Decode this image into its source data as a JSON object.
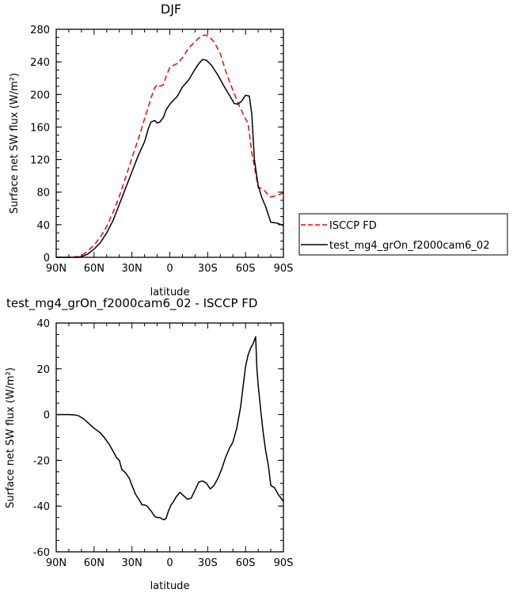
{
  "chart_data": [
    {
      "type": "line",
      "title": "DJF",
      "xlabel": "latitude",
      "ylabel": "Surface net SW flux (W/m²)",
      "xlim": [
        90,
        -90
      ],
      "ylim": [
        0,
        280
      ],
      "x_ticks": [
        90,
        60,
        30,
        0,
        -30,
        -60,
        -90
      ],
      "x_tick_labels": [
        "90N",
        "60N",
        "30N",
        "0",
        "30S",
        "60S",
        "90S"
      ],
      "y_ticks": [
        0,
        40,
        80,
        120,
        160,
        200,
        240,
        280
      ],
      "y_tick_labels": [
        "0",
        "40",
        "80",
        "120",
        "160",
        "200",
        "240",
        "280"
      ],
      "legend_position": "right",
      "series": [
        {
          "name": "ISCCP FD",
          "color": "#ff0000",
          "dash": "dashed",
          "points": [
            [
              90,
              0
            ],
            [
              80,
              0
            ],
            [
              72,
              1
            ],
            [
              68,
              4
            ],
            [
              65,
              8
            ],
            [
              60,
              15
            ],
            [
              55,
              25
            ],
            [
              50,
              38
            ],
            [
              45,
              55
            ],
            [
              40,
              75
            ],
            [
              35,
              98
            ],
            [
              30,
              122
            ],
            [
              25,
              145
            ],
            [
              20,
              170
            ],
            [
              15,
              195
            ],
            [
              12,
              208
            ],
            [
              10,
              212
            ],
            [
              8,
              210
            ],
            [
              5,
              212
            ],
            [
              3,
              222
            ],
            [
              0,
              233
            ],
            [
              -3,
              236
            ],
            [
              -6,
              238
            ],
            [
              -10,
              245
            ],
            [
              -15,
              257
            ],
            [
              -20,
              265
            ],
            [
              -25,
              272
            ],
            [
              -28,
              273
            ],
            [
              -31,
              271
            ],
            [
              -35,
              265
            ],
            [
              -40,
              250
            ],
            [
              -45,
              225
            ],
            [
              -50,
              205
            ],
            [
              -55,
              186
            ],
            [
              -60,
              170
            ],
            [
              -62,
              165
            ],
            [
              -65,
              128
            ],
            [
              -70,
              86
            ],
            [
              -72,
              85
            ],
            [
              -75,
              82
            ],
            [
              -78,
              76
            ],
            [
              -80,
              74
            ],
            [
              -85,
              76
            ],
            [
              -90,
              79
            ]
          ]
        },
        {
          "name": "test_mg4_grOn_f2000cam6_02",
          "color": "#000000",
          "dash": "solid",
          "points": [
            [
              90,
              0
            ],
            [
              80,
              0
            ],
            [
              72,
              0
            ],
            [
              68,
              2
            ],
            [
              65,
              4
            ],
            [
              60,
              10
            ],
            [
              55,
              18
            ],
            [
              50,
              30
            ],
            [
              45,
              45
            ],
            [
              40,
              65
            ],
            [
              35,
              85
            ],
            [
              30,
              105
            ],
            [
              25,
              125
            ],
            [
              20,
              142
            ],
            [
              17,
              158
            ],
            [
              15,
              166
            ],
            [
              12,
              168
            ],
            [
              10,
              165
            ],
            [
              8,
              166
            ],
            [
              5,
              172
            ],
            [
              3,
              181
            ],
            [
              0,
              188
            ],
            [
              -3,
              193
            ],
            [
              -6,
              198
            ],
            [
              -10,
              209
            ],
            [
              -15,
              218
            ],
            [
              -20,
              231
            ],
            [
              -23,
              238
            ],
            [
              -26,
              243
            ],
            [
              -29,
              242
            ],
            [
              -33,
              236
            ],
            [
              -38,
              224
            ],
            [
              -43,
              210
            ],
            [
              -48,
              197
            ],
            [
              -51,
              189
            ],
            [
              -54,
              188
            ],
            [
              -57,
              192
            ],
            [
              -60,
              199
            ],
            [
              -63,
              198
            ],
            [
              -65,
              175
            ],
            [
              -67,
              120
            ],
            [
              -70,
              88
            ],
            [
              -73,
              73
            ],
            [
              -76,
              62
            ],
            [
              -80,
              43
            ],
            [
              -85,
              42
            ],
            [
              -90,
              39
            ]
          ]
        }
      ]
    },
    {
      "type": "line",
      "title": "test_mg4_grOn_f2000cam6_02 - ISCCP FD",
      "xlabel": "latitude",
      "ylabel": "Surface net SW flux (W/m²)",
      "xlim": [
        90,
        -90
      ],
      "ylim": [
        -60,
        40
      ],
      "x_ticks": [
        90,
        60,
        30,
        0,
        -30,
        -60,
        -90
      ],
      "x_tick_labels": [
        "90N",
        "60N",
        "30N",
        "0",
        "30S",
        "60S",
        "90S"
      ],
      "y_ticks": [
        -60,
        -40,
        -20,
        0,
        20,
        40
      ],
      "y_tick_labels": [
        "-60",
        "-40",
        "-20",
        "0",
        "20",
        "40"
      ],
      "series": [
        {
          "color": "#000000",
          "dash": "solid",
          "points": [
            [
              90,
              0
            ],
            [
              80,
              0
            ],
            [
              75,
              -0.2
            ],
            [
              72,
              -0.6
            ],
            [
              68,
              -2
            ],
            [
              65,
              -3.5
            ],
            [
              60,
              -6
            ],
            [
              55,
              -8
            ],
            [
              52,
              -10
            ],
            [
              48,
              -13
            ],
            [
              45,
              -16
            ],
            [
              42,
              -19
            ],
            [
              40,
              -20
            ],
            [
              38,
              -24
            ],
            [
              35,
              -25.5
            ],
            [
              32,
              -28
            ],
            [
              30,
              -31
            ],
            [
              27,
              -35
            ],
            [
              24,
              -37.5
            ],
            [
              22,
              -39.5
            ],
            [
              20,
              -39.5
            ],
            [
              18,
              -40
            ],
            [
              15,
              -42
            ],
            [
              12,
              -44.5
            ],
            [
              10,
              -45
            ],
            [
              8,
              -45
            ],
            [
              5,
              -46
            ],
            [
              3,
              -45.5
            ],
            [
              1,
              -42
            ],
            [
              -1,
              -39.5
            ],
            [
              -3,
              -38
            ],
            [
              -5,
              -36
            ],
            [
              -8,
              -34
            ],
            [
              -11,
              -35.5
            ],
            [
              -14,
              -37
            ],
            [
              -17,
              -36.5
            ],
            [
              -20,
              -33
            ],
            [
              -23,
              -29.5
            ],
            [
              -26,
              -29
            ],
            [
              -29,
              -30
            ],
            [
              -32,
              -32.5
            ],
            [
              -35,
              -31
            ],
            [
              -38,
              -28
            ],
            [
              -41,
              -24
            ],
            [
              -44,
              -19
            ],
            [
              -47,
              -15
            ],
            [
              -50,
              -12
            ],
            [
              -53,
              -6
            ],
            [
              -56,
              3
            ],
            [
              -58,
              12
            ],
            [
              -60,
              21
            ],
            [
              -62,
              26
            ],
            [
              -64,
              29
            ],
            [
              -66,
              31
            ],
            [
              -68,
              34
            ],
            [
              -69,
              20
            ],
            [
              -70,
              13
            ],
            [
              -72,
              2
            ],
            [
              -74,
              -8
            ],
            [
              -76,
              -16
            ],
            [
              -78,
              -22
            ],
            [
              -80,
              -31
            ],
            [
              -83,
              -32
            ],
            [
              -86,
              -35
            ],
            [
              -90,
              -38
            ]
          ]
        }
      ]
    }
  ]
}
